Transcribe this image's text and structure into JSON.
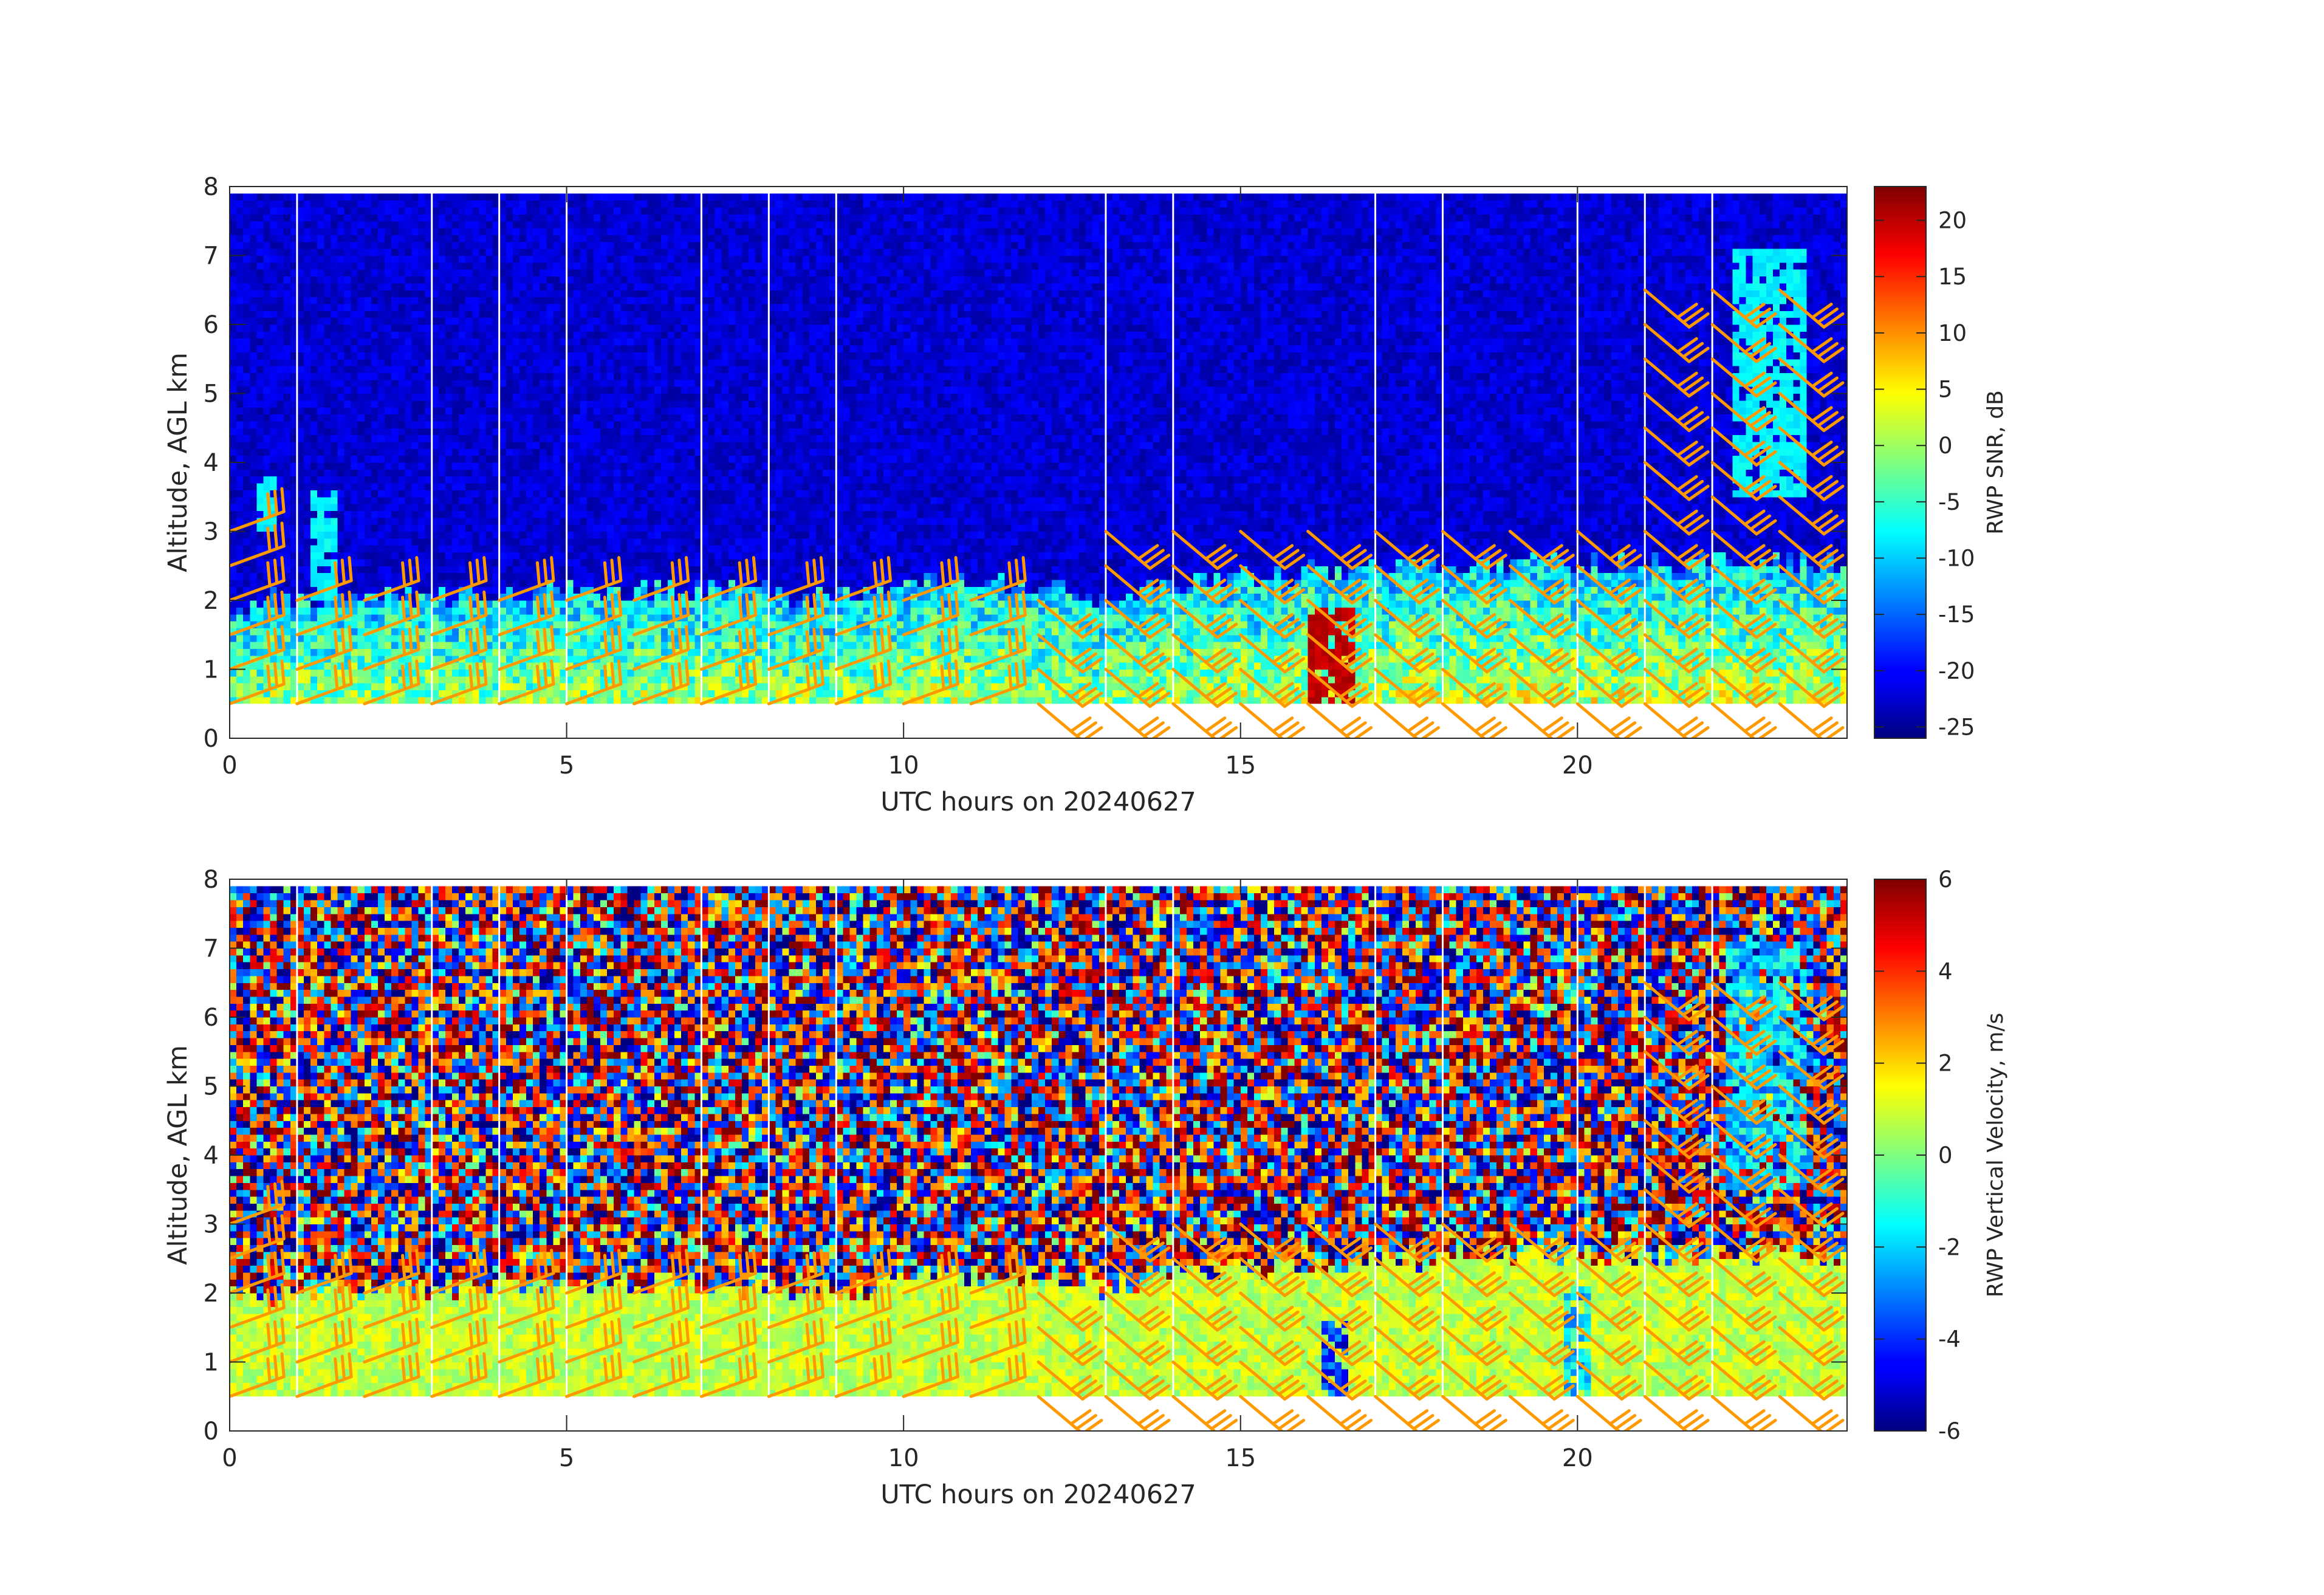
{
  "chart_data": [
    {
      "type": "heatmap",
      "panel": "top",
      "xlabel": "UTC hours on 20240627",
      "ylabel": "Altitude, AGL km",
      "xlim": [
        0,
        24
      ],
      "ylim": [
        0,
        8
      ],
      "xticks": [
        0,
        5,
        10,
        15,
        20
      ],
      "yticks": [
        0,
        1,
        2,
        3,
        4,
        5,
        6,
        7,
        8
      ],
      "colorbar": {
        "label": "RWP SNR, dB",
        "range": [
          -26,
          23
        ],
        "ticks": [
          20,
          15,
          10,
          5,
          0,
          -5,
          -10,
          -15,
          -20,
          -25
        ],
        "colormap": "jet"
      },
      "data_extent": {
        "time": [
          0,
          24
        ],
        "altitude_km": [
          0.5,
          7.9
        ]
      },
      "background_value": -22,
      "boundary_layer_top_km": [
        [
          0,
          1.9
        ],
        [
          2,
          2.0
        ],
        [
          5,
          2.1
        ],
        [
          9.5,
          2.0
        ],
        [
          10,
          2.2
        ],
        [
          12,
          2.2
        ],
        [
          13,
          2.0
        ],
        [
          15,
          2.3
        ],
        [
          17,
          2.4
        ],
        [
          20,
          2.5
        ],
        [
          24,
          2.5
        ]
      ],
      "features": [
        {
          "time_range": [
            0.4,
            0.7
          ],
          "altitude_range": [
            3.0,
            3.7
          ],
          "value": -8
        },
        {
          "time_range": [
            1.2,
            1.5
          ],
          "altitude_range": [
            2.0,
            3.5
          ],
          "value": -8
        },
        {
          "time_range": [
            16.0,
            16.6
          ],
          "altitude_range": [
            0.5,
            1.8
          ],
          "value": 20
        },
        {
          "time_range": [
            22.3,
            23.4
          ],
          "altitude_range": [
            3.5,
            7.0
          ],
          "value": -8
        }
      ],
      "gaps_utc": [
        1.0,
        3.0,
        4.0,
        5.0,
        7.0,
        8.0,
        9.0,
        13.0,
        14.0,
        17.0,
        18.0,
        20.0,
        21.0,
        22.0
      ]
    },
    {
      "type": "heatmap",
      "panel": "bottom",
      "xlabel": "UTC hours on 20240627",
      "ylabel": "Altitude, AGL km",
      "xlim": [
        0,
        24
      ],
      "ylim": [
        0,
        8
      ],
      "xticks": [
        0,
        5,
        10,
        15,
        20
      ],
      "yticks": [
        0,
        1,
        2,
        3,
        4,
        5,
        6,
        7,
        8
      ],
      "colorbar": {
        "label": "RWP Vertical Velocity, m/s",
        "range": [
          -6,
          6
        ],
        "ticks": [
          6,
          4,
          2,
          0,
          -2,
          -4,
          -6
        ],
        "colormap": "jet"
      },
      "data_extent": {
        "time": [
          0,
          24
        ],
        "altitude_km": [
          0.5,
          7.9
        ]
      },
      "boundary_layer_value_m_s": 0.8,
      "noise_above_boundary_layer": "random ±6 m/s",
      "features": [
        {
          "time_range": [
            16.2,
            16.5
          ],
          "altitude_range": [
            0.5,
            1.5
          ],
          "value": -4
        },
        {
          "time_range": [
            19.8,
            20.2
          ],
          "altitude_range": [
            0.5,
            2.0
          ],
          "value": -2
        },
        {
          "time_range": [
            22.2,
            23.4
          ],
          "altitude_range": [
            3.5,
            7.0
          ],
          "value": -2
        }
      ],
      "gaps_utc": [
        1.0,
        3.0,
        4.0,
        5.0,
        7.0,
        8.0,
        9.0,
        13.0,
        14.0,
        17.0,
        18.0,
        20.0,
        21.0,
        22.0
      ]
    }
  ],
  "wind_barbs": {
    "color": "#ff9900",
    "profiles_utc": [
      0,
      1,
      2,
      3,
      4,
      5,
      6,
      7,
      8,
      9,
      10,
      11,
      12,
      13,
      14,
      15,
      16,
      17,
      18,
      19,
      20,
      21,
      22,
      23
    ],
    "levels_km": [
      0.5,
      1.0,
      1.5,
      2.0,
      2.5,
      3.0,
      3.5,
      4.0,
      4.5,
      5.0,
      5.5,
      6.0,
      6.5
    ],
    "direction_before_12_deg": 250,
    "direction_after_12_deg": 310,
    "speed_knots_typical": 25
  }
}
